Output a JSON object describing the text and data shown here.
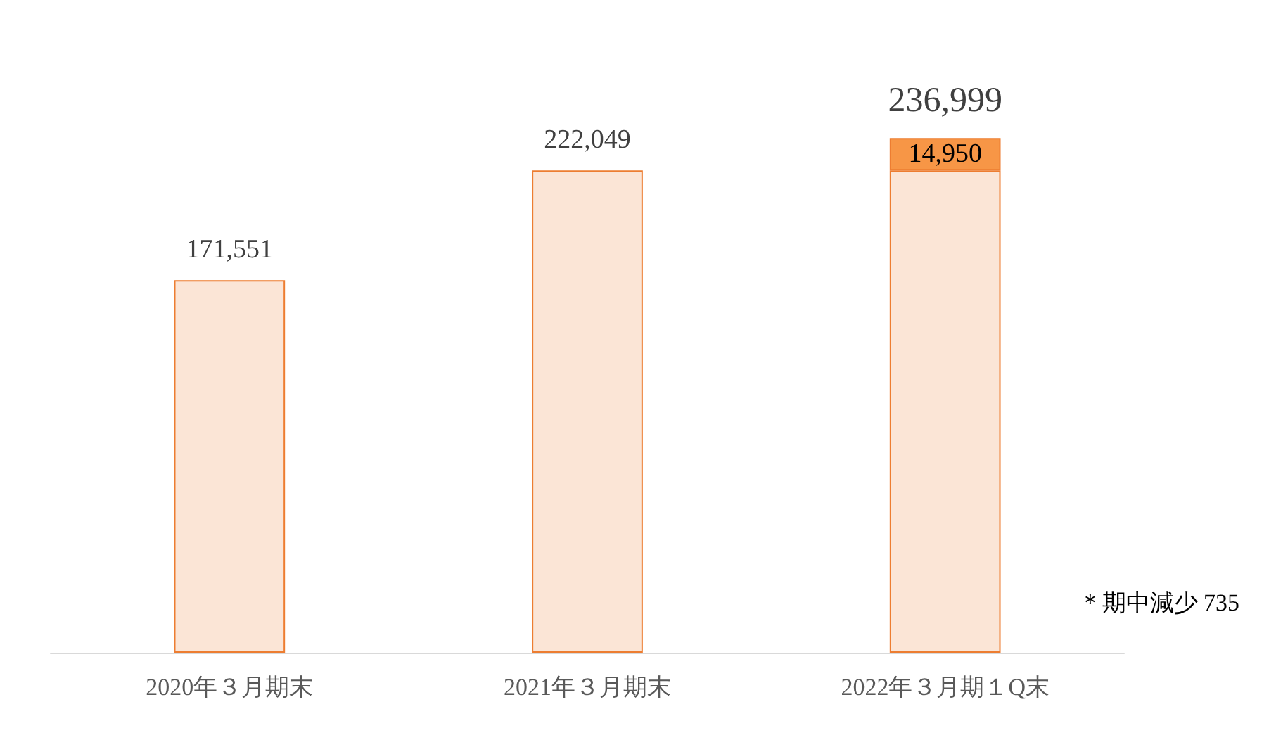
{
  "chart_data": {
    "type": "bar",
    "stacked": true,
    "categories": [
      "2020年３月期末",
      "2021年３月期末",
      "2022年３月期１Q末"
    ],
    "series": [
      {
        "color": "#fbe5d6",
        "values": [
          171551,
          222049,
          222049
        ],
        "value_labels": [
          "171,551",
          "222,049",
          null
        ]
      },
      {
        "color": "#f79646",
        "values": [
          null,
          null,
          14950
        ],
        "value_labels": [
          null,
          null,
          "14,950"
        ]
      }
    ],
    "totals": [
      null,
      null,
      "236,999"
    ],
    "annotations": [
      "＊期中減少 735"
    ]
  }
}
